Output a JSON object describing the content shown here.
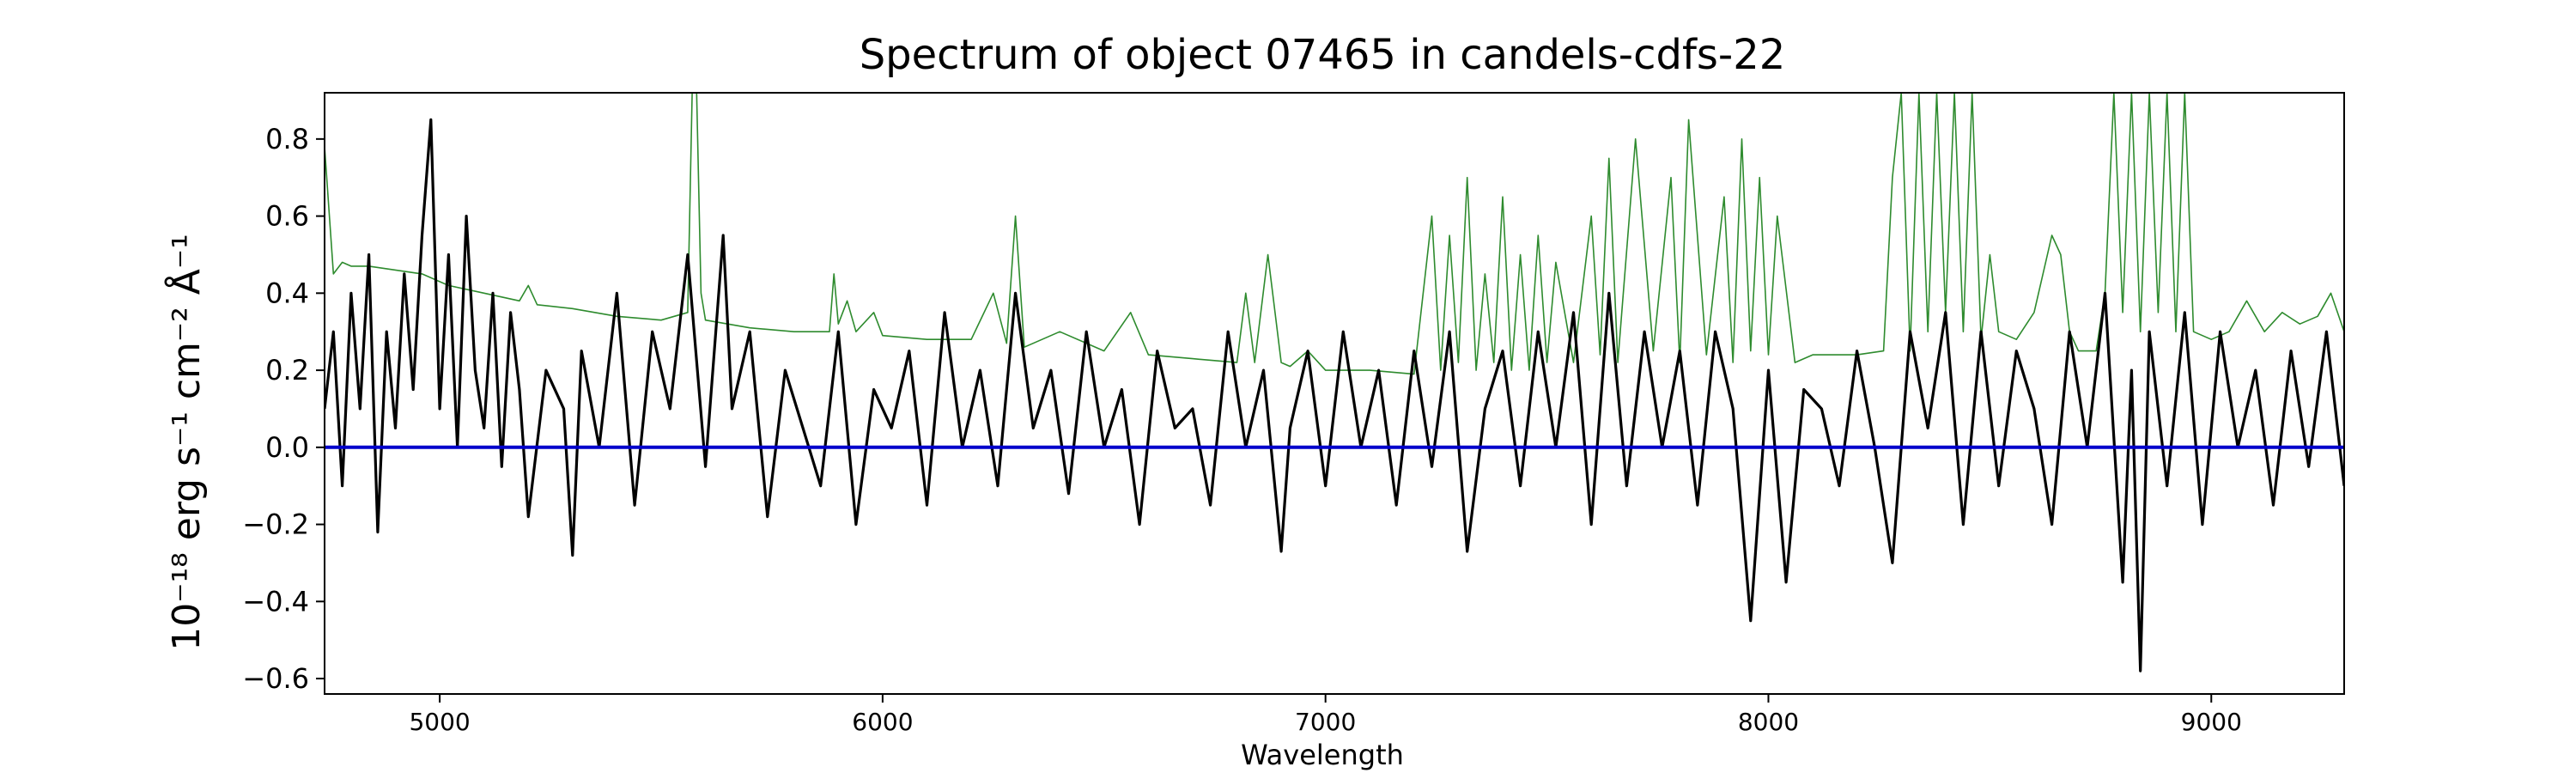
{
  "chart_data": {
    "type": "line",
    "title": "Spectrum of object 07465 in candels-cdfs-22",
    "xlabel": "Wavelength",
    "ylabel": "10⁻¹⁸ erg s⁻¹ cm⁻² Å⁻¹",
    "xlim": [
      4740,
      9300
    ],
    "ylim": [
      -0.64,
      0.92
    ],
    "x_ticks": [
      5000,
      6000,
      7000,
      8000,
      9000
    ],
    "y_ticks": [
      -0.6,
      -0.4,
      -0.2,
      0.0,
      0.2,
      0.4,
      0.6,
      0.8
    ],
    "x_tick_labels": [
      "5000",
      "6000",
      "7000",
      "8000",
      "9000"
    ],
    "y_tick_labels": [
      "−0.6",
      "−0.4",
      "−0.2",
      "0.0",
      "0.2",
      "0.4",
      "0.6",
      "0.8"
    ],
    "grid": false,
    "legend": "none",
    "series": [
      {
        "color": "#000000",
        "x": [
          4740,
          4760,
          4780,
          4800,
          4820,
          4840,
          4860,
          4880,
          4900,
          4920,
          4940,
          4960,
          4980,
          5000,
          5020,
          5040,
          5060,
          5080,
          5100,
          5120,
          5140,
          5160,
          5180,
          5200,
          5240,
          5280,
          5300,
          5320,
          5360,
          5400,
          5440,
          5480,
          5520,
          5560,
          5600,
          5640,
          5660,
          5700,
          5740,
          5780,
          5820,
          5860,
          5900,
          5940,
          5980,
          6020,
          6060,
          6100,
          6140,
          6180,
          6220,
          6260,
          6300,
          6340,
          6380,
          6420,
          6460,
          6500,
          6540,
          6580,
          6620,
          6660,
          6700,
          6740,
          6780,
          6820,
          6860,
          6900,
          6920,
          6960,
          7000,
          7040,
          7080,
          7120,
          7160,
          7200,
          7240,
          7280,
          7320,
          7360,
          7400,
          7440,
          7480,
          7520,
          7560,
          7600,
          7640,
          7680,
          7720,
          7760,
          7800,
          7840,
          7880,
          7920,
          7960,
          8000,
          8040,
          8080,
          8120,
          8160,
          8200,
          8240,
          8280,
          8320,
          8360,
          8400,
          8440,
          8480,
          8520,
          8560,
          8600,
          8640,
          8680,
          8720,
          8760,
          8800,
          8820,
          8840,
          8860,
          8900,
          8940,
          8980,
          9020,
          9060,
          9100,
          9140,
          9180,
          9220,
          9260,
          9300
        ],
        "y": [
          0.1,
          0.3,
          -0.1,
          0.4,
          0.1,
          0.5,
          -0.22,
          0.3,
          0.05,
          0.45,
          0.15,
          0.55,
          0.85,
          0.1,
          0.5,
          0.0,
          0.6,
          0.2,
          0.05,
          0.4,
          -0.05,
          0.35,
          0.15,
          -0.18,
          0.2,
          0.1,
          -0.28,
          0.25,
          0.0,
          0.4,
          -0.15,
          0.3,
          0.1,
          0.5,
          -0.05,
          0.55,
          0.1,
          0.3,
          -0.18,
          0.2,
          0.05,
          -0.1,
          0.3,
          -0.2,
          0.15,
          0.05,
          0.25,
          -0.15,
          0.35,
          0.0,
          0.2,
          -0.1,
          0.4,
          0.05,
          0.2,
          -0.12,
          0.3,
          0.0,
          0.15,
          -0.2,
          0.25,
          0.05,
          0.1,
          -0.15,
          0.3,
          0.0,
          0.2,
          -0.27,
          0.05,
          0.25,
          -0.1,
          0.3,
          0.0,
          0.2,
          -0.15,
          0.25,
          -0.05,
          0.3,
          -0.27,
          0.1,
          0.25,
          -0.1,
          0.3,
          0.0,
          0.35,
          -0.2,
          0.4,
          -0.1,
          0.3,
          0.0,
          0.25,
          -0.15,
          0.3,
          0.1,
          -0.45,
          0.2,
          -0.35,
          0.15,
          0.1,
          -0.1,
          0.25,
          0.0,
          -0.3,
          0.3,
          0.05,
          0.35,
          -0.2,
          0.3,
          -0.1,
          0.25,
          0.1,
          -0.2,
          0.3,
          0.0,
          0.4,
          -0.35,
          0.2,
          -0.58,
          0.3,
          -0.1,
          0.35,
          -0.2,
          0.3,
          0.0,
          0.2,
          -0.15,
          0.25,
          -0.05,
          0.3,
          -0.1
        ]
      },
      {
        "color": "#2e8b2e",
        "x": [
          4740,
          4760,
          4780,
          4800,
          4840,
          4900,
          4960,
          5020,
          5100,
          5180,
          5200,
          5220,
          5300,
          5400,
          5500,
          5560,
          5570,
          5580,
          5590,
          5600,
          5700,
          5800,
          5880,
          5890,
          5900,
          5920,
          5940,
          5980,
          6000,
          6100,
          6200,
          6250,
          6280,
          6300,
          6320,
          6400,
          6500,
          6560,
          6600,
          6700,
          6800,
          6820,
          6840,
          6870,
          6900,
          6920,
          6960,
          7000,
          7100,
          7200,
          7240,
          7260,
          7280,
          7300,
          7320,
          7340,
          7360,
          7380,
          7400,
          7420,
          7440,
          7460,
          7480,
          7500,
          7520,
          7560,
          7600,
          7620,
          7640,
          7660,
          7700,
          7740,
          7780,
          7800,
          7820,
          7860,
          7900,
          7920,
          7940,
          7960,
          7980,
          8000,
          8020,
          8060,
          8100,
          8200,
          8260,
          8280,
          8300,
          8320,
          8340,
          8360,
          8380,
          8400,
          8420,
          8440,
          8460,
          8480,
          8500,
          8520,
          8560,
          8600,
          8640,
          8660,
          8680,
          8700,
          8740,
          8760,
          8780,
          8800,
          8820,
          8840,
          8860,
          8880,
          8900,
          8920,
          8940,
          8960,
          9000,
          9040,
          9080,
          9120,
          9160,
          9200,
          9240,
          9270,
          9300
        ],
        "y": [
          0.78,
          0.45,
          0.48,
          0.47,
          0.47,
          0.46,
          0.45,
          0.42,
          0.4,
          0.38,
          0.42,
          0.37,
          0.36,
          0.34,
          0.33,
          0.35,
          0.92,
          0.92,
          0.4,
          0.33,
          0.31,
          0.3,
          0.3,
          0.45,
          0.32,
          0.38,
          0.3,
          0.35,
          0.29,
          0.28,
          0.28,
          0.4,
          0.27,
          0.6,
          0.26,
          0.3,
          0.25,
          0.35,
          0.24,
          0.23,
          0.22,
          0.4,
          0.22,
          0.5,
          0.22,
          0.21,
          0.25,
          0.2,
          0.2,
          0.19,
          0.6,
          0.2,
          0.55,
          0.22,
          0.7,
          0.2,
          0.45,
          0.22,
          0.65,
          0.2,
          0.5,
          0.2,
          0.55,
          0.22,
          0.48,
          0.22,
          0.6,
          0.24,
          0.75,
          0.22,
          0.8,
          0.25,
          0.7,
          0.22,
          0.85,
          0.24,
          0.65,
          0.22,
          0.8,
          0.25,
          0.7,
          0.24,
          0.6,
          0.22,
          0.24,
          0.24,
          0.25,
          0.7,
          0.92,
          0.25,
          0.92,
          0.3,
          0.92,
          0.35,
          0.92,
          0.3,
          0.92,
          0.28,
          0.5,
          0.3,
          0.28,
          0.35,
          0.55,
          0.5,
          0.3,
          0.25,
          0.25,
          0.4,
          0.92,
          0.35,
          0.92,
          0.3,
          0.92,
          0.35,
          0.92,
          0.3,
          0.92,
          0.3,
          0.28,
          0.3,
          0.38,
          0.3,
          0.35,
          0.32,
          0.34,
          0.4,
          0.3
        ]
      },
      {
        "color": "#0000cc",
        "x": [
          4740,
          9300
        ],
        "y": [
          0.0,
          0.0
        ]
      }
    ]
  }
}
